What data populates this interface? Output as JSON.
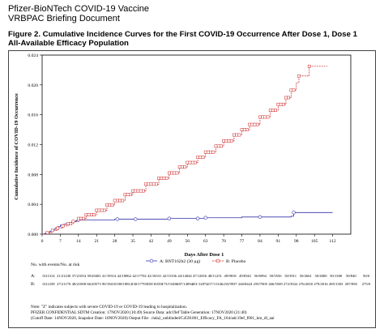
{
  "header": {
    "line1": "Pfizer-BioNTech COVID-19 Vaccine",
    "line2": "VRBPAC Briefing Document"
  },
  "figure": {
    "title_line1": "Figure 2. Cumulative Incidence Curves for the First COVID-19 Occurrence After Dose 1, Dose 1",
    "title_line2": "All-Available Efficacy Population"
  },
  "chart_data": {
    "type": "line",
    "title": "",
    "xlabel": "Days After Dose 1",
    "ylabel": "Cumulative Incidence of COVID-19 Occurrence",
    "xlim": [
      0,
      119
    ],
    "ylim": [
      0,
      0.024
    ],
    "x_ticks": [
      0,
      7,
      14,
      21,
      28,
      35,
      42,
      49,
      56,
      63,
      70,
      77,
      84,
      91,
      98,
      105,
      112
    ],
    "y_ticks": [
      0.0,
      0.004,
      0.008,
      0.012,
      0.016,
      0.02,
      0.024
    ],
    "y_tick_labels": [
      "0.000",
      "0.004",
      "0.008",
      "0.012",
      "0.016",
      "0.020",
      "0.024"
    ],
    "legend_placement": "bottom",
    "series": [
      {
        "name": "A: BNT162b2 (30 µg)",
        "color": "#3333aa",
        "marker": "circle",
        "points": [
          [
            0,
            0
          ],
          [
            1,
            0.0001
          ],
          [
            2,
            0.0002
          ],
          [
            3,
            0.0004
          ],
          [
            4,
            0.0006
          ],
          [
            5,
            0.0008
          ],
          [
            6,
            0.001
          ],
          [
            7,
            0.0012
          ],
          [
            8,
            0.0013
          ],
          [
            9,
            0.0014
          ],
          [
            10,
            0.0015
          ],
          [
            11,
            0.0016
          ],
          [
            12,
            0.0017
          ],
          [
            13,
            0.0018
          ],
          [
            14,
            0.0019
          ],
          [
            16,
            0.0019
          ],
          [
            18,
            0.0019
          ],
          [
            21,
            0.0019
          ],
          [
            28,
            0.002
          ],
          [
            35,
            0.002
          ],
          [
            42,
            0.002
          ],
          [
            49,
            0.0021
          ],
          [
            56,
            0.0021
          ],
          [
            63,
            0.0022
          ],
          [
            70,
            0.0022
          ],
          [
            77,
            0.0023
          ],
          [
            84,
            0.0023
          ],
          [
            91,
            0.0023
          ],
          [
            96,
            0.0024
          ],
          [
            97,
            0.0029
          ],
          [
            105,
            0.0029
          ],
          [
            112,
            0.0029
          ]
        ],
        "markers_x": [
          14,
          29,
          36,
          49,
          60,
          63,
          84,
          97
        ]
      },
      {
        "name": "B: Placebo",
        "color": "#cc2222",
        "marker": "square",
        "points": [
          [
            0,
            0
          ],
          [
            2,
            0.0002
          ],
          [
            4,
            0.0005
          ],
          [
            6,
            0.0008
          ],
          [
            8,
            0.0011
          ],
          [
            10,
            0.0014
          ],
          [
            12,
            0.0017
          ],
          [
            14,
            0.0021
          ],
          [
            17,
            0.0026
          ],
          [
            21,
            0.0032
          ],
          [
            25,
            0.0039
          ],
          [
            28,
            0.0045
          ],
          [
            32,
            0.0053
          ],
          [
            35,
            0.0058
          ],
          [
            40,
            0.0067
          ],
          [
            45,
            0.0075
          ],
          [
            49,
            0.0082
          ],
          [
            53,
            0.009
          ],
          [
            56,
            0.0096
          ],
          [
            60,
            0.0103
          ],
          [
            63,
            0.011
          ],
          [
            67,
            0.0118
          ],
          [
            70,
            0.0125
          ],
          [
            74,
            0.0133
          ],
          [
            77,
            0.014
          ],
          [
            80,
            0.0147
          ],
          [
            84,
            0.0157
          ],
          [
            88,
            0.0166
          ],
          [
            91,
            0.0174
          ],
          [
            94,
            0.0183
          ],
          [
            96,
            0.0193
          ],
          [
            98,
            0.0203
          ],
          [
            99,
            0.0212
          ],
          [
            102,
            0.0212
          ],
          [
            103,
            0.0225
          ],
          [
            110,
            0.0225
          ]
        ],
        "markers_x": [
          2,
          4,
          6,
          8,
          10,
          11,
          12,
          14,
          15,
          16,
          17,
          18,
          19,
          20,
          21,
          22,
          23,
          24,
          25,
          26,
          27,
          28,
          29,
          30,
          31,
          32,
          33,
          34,
          35,
          36,
          37,
          38,
          39,
          40,
          41,
          42,
          43,
          44,
          45,
          46,
          47,
          48,
          49,
          50,
          51,
          52,
          53,
          54,
          55,
          56,
          57,
          58,
          59,
          60,
          61,
          62,
          63,
          64,
          65,
          66,
          67,
          68,
          69,
          70,
          71,
          72,
          73,
          74,
          75,
          76,
          77,
          78,
          79,
          80,
          81,
          82,
          83,
          84,
          85,
          86,
          87,
          88,
          89,
          90,
          91,
          92,
          93,
          94,
          95,
          96,
          97,
          99,
          103
        ]
      }
    ],
    "filled_markers_note": "",
    "legend": [
      {
        "label": "A: BNT162b2 (30 µg)"
      },
      {
        "label": "B: Placebo"
      }
    ]
  },
  "risk_table": {
    "title": "No. with events/No. at risk",
    "row_a_label": "A:",
    "row_b_label": "B:",
    "row_a": [
      "0/21314",
      "21/21230",
      "37/21054",
      "39/20481",
      "41/19314",
      "42/18862",
      "42/17702",
      "42/16531",
      "42/15336",
      "44/14044",
      "47/12816",
      "48/11251",
      "49/9818",
      "49/8361",
      "50/6994",
      "50/5556",
      "50/3911",
      "50/2661",
      "50/2000",
      "50/1300",
      "50/840",
      "50/0"
    ],
    "row_b": [
      "0/21258",
      "27/21170",
      "48/21008",
      "66/20573",
      "90/19410",
      "108/18812",
      "130/17703",
      "158/16553",
      "173/15406",
      "187/14094",
      "201/12872",
      "217/11346",
      "233/9937",
      "246/8424",
      "259/7005",
      "266/5569",
      "272/3922",
      "276/2650",
      "279/2016",
      "285/1303",
      "287/850",
      "275/0"
    ]
  },
  "notes": [
    "Note: \"Z\" indicates subjects with severe COVID-19 or COVID-19 leading to hospitalization.",
    "PFIZER CONFIDENTIAL SDTM Creation: 17NOV2020 (10:49) Source Data: adc19ef Table Generation: 17NOV2020 (21:40)",
    "(Cutoff Date: 14NOV2020, Snapshot Date: 16NOV2020) Output File: ./nda2_unblinded/C4591001_Efficacy_FA_164/adc19ef_f001_km_dl_aai"
  ]
}
